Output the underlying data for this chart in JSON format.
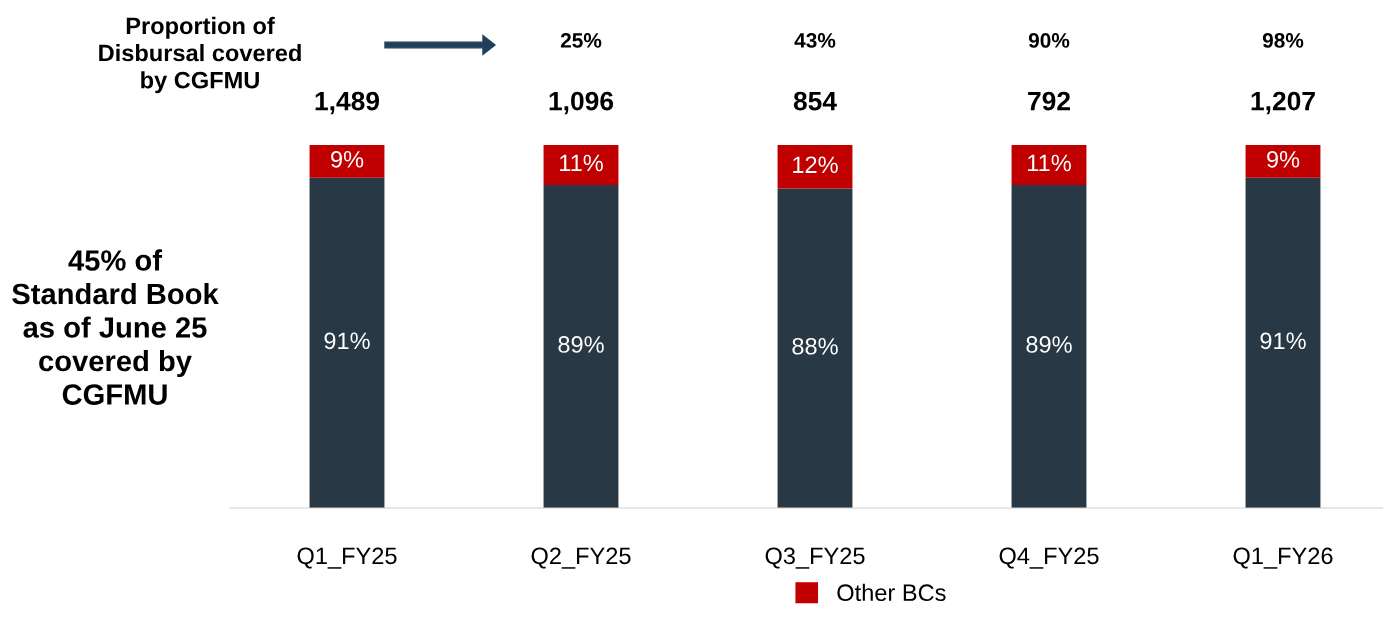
{
  "chart_data": {
    "type": "bar",
    "stacked": true,
    "categories": [
      "Q1_FY25",
      "Q2_FY25",
      "Q3_FY25",
      "Q4_FY25",
      "Q1_FY26"
    ],
    "series": [
      {
        "color": "#283845",
        "values": [
          91,
          89,
          88,
          89,
          91
        ],
        "value_labels": [
          "91%",
          "89%",
          "88%",
          "89%",
          "91%"
        ]
      },
      {
        "name": "Other BCs",
        "color": "#c00000",
        "values": [
          9,
          11,
          12,
          11,
          9
        ],
        "value_labels": [
          "9%",
          "11%",
          "12%",
          "11%",
          "9%"
        ]
      }
    ],
    "annotations": [
      "Proportion of\nDisbursal covered\nby CGFMU",
      "45% of\nStandard Book\nas of June 25\ncovered by\nCGFMU",
      "25%",
      "43%",
      "90%",
      "98%",
      "1,489",
      "1,096",
      "854",
      "792",
      "1,207"
    ],
    "legend": "bottom",
    "grid": false
  }
}
